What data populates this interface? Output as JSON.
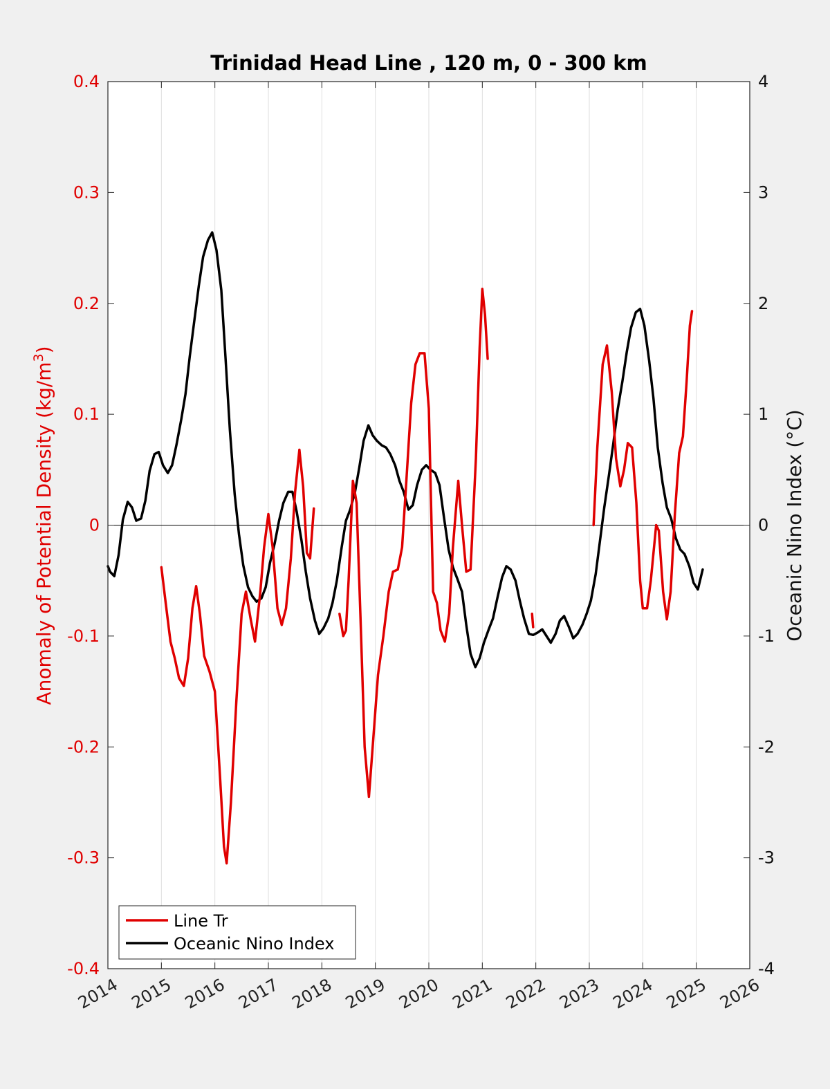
{
  "chart_data": {
    "type": "line",
    "title": "Trinidad Head Line , 120 m, 0 - 300 km",
    "ylabel_left": "Anomaly of Potential Density (kg/m",
    "ylabel_left_sup": "3",
    "ylabel_left_suffix": ")",
    "ylabel_right": "Oceanic Nino Index (°C)",
    "xlim": [
      2014,
      2026
    ],
    "ylim_left": [
      -0.4,
      0.4
    ],
    "ylim_right": [
      -4,
      4
    ],
    "xticks": [
      "2014",
      "2015",
      "2016",
      "2017",
      "2018",
      "2019",
      "2020",
      "2021",
      "2022",
      "2023",
      "2024",
      "2025",
      "2026"
    ],
    "yticks_left": [
      "-0.4",
      "-0.3",
      "-0.2",
      "-0.1",
      "0",
      "0.1",
      "0.2",
      "0.3",
      "0.4"
    ],
    "yticks_right": [
      "-4",
      "-3",
      "-2",
      "-1",
      "0",
      "1",
      "2",
      "3",
      "4"
    ],
    "grid": "vertical",
    "legend_position": "bottom-left",
    "series": [
      {
        "name": "Line Tr",
        "axis": "left",
        "color": "#e00000",
        "segments": [
          [
            [
              2015.0,
              -0.038
            ],
            [
              2015.08,
              -0.07
            ],
            [
              2015.17,
              -0.105
            ],
            [
              2015.25,
              -0.12
            ],
            [
              2015.33,
              -0.138
            ],
            [
              2015.42,
              -0.145
            ],
            [
              2015.5,
              -0.12
            ],
            [
              2015.58,
              -0.075
            ],
            [
              2015.65,
              -0.055
            ],
            [
              2015.72,
              -0.08
            ],
            [
              2015.8,
              -0.118
            ],
            [
              2015.9,
              -0.132
            ],
            [
              2016.0,
              -0.15
            ],
            [
              2016.1,
              -0.23
            ],
            [
              2016.17,
              -0.29
            ],
            [
              2016.22,
              -0.305
            ],
            [
              2016.3,
              -0.25
            ],
            [
              2016.4,
              -0.16
            ],
            [
              2016.5,
              -0.08
            ],
            [
              2016.58,
              -0.06
            ],
            [
              2016.67,
              -0.085
            ],
            [
              2016.75,
              -0.105
            ],
            [
              2016.85,
              -0.06
            ],
            [
              2016.92,
              -0.02
            ],
            [
              2017.0,
              0.01
            ],
            [
              2017.08,
              -0.02
            ],
            [
              2017.17,
              -0.075
            ],
            [
              2017.25,
              -0.09
            ],
            [
              2017.33,
              -0.075
            ],
            [
              2017.42,
              -0.03
            ],
            [
              2017.5,
              0.03
            ],
            [
              2017.58,
              0.068
            ],
            [
              2017.65,
              0.035
            ],
            [
              2017.72,
              -0.025
            ],
            [
              2017.78,
              -0.03
            ],
            [
              2017.85,
              0.015
            ]
          ],
          [
            [
              2018.33,
              -0.08
            ],
            [
              2018.4,
              -0.1
            ],
            [
              2018.45,
              -0.095
            ],
            [
              2018.5,
              -0.05
            ],
            [
              2018.58,
              0.04
            ],
            [
              2018.65,
              0.02
            ],
            [
              2018.72,
              -0.08
            ],
            [
              2018.8,
              -0.2
            ],
            [
              2018.88,
              -0.245
            ],
            [
              2018.95,
              -0.2
            ],
            [
              2019.05,
              -0.135
            ],
            [
              2019.15,
              -0.1
            ],
            [
              2019.25,
              -0.06
            ],
            [
              2019.33,
              -0.042
            ],
            [
              2019.42,
              -0.04
            ],
            [
              2019.5,
              -0.02
            ],
            [
              2019.58,
              0.04
            ],
            [
              2019.67,
              0.11
            ],
            [
              2019.75,
              0.145
            ],
            [
              2019.83,
              0.155
            ],
            [
              2019.92,
              0.155
            ],
            [
              2020.0,
              0.105
            ],
            [
              2020.08,
              -0.06
            ],
            [
              2020.15,
              -0.07
            ],
            [
              2020.22,
              -0.095
            ],
            [
              2020.3,
              -0.105
            ],
            [
              2020.38,
              -0.08
            ],
            [
              2020.45,
              -0.02
            ],
            [
              2020.55,
              0.04
            ],
            [
              2020.62,
              0.0
            ],
            [
              2020.7,
              -0.042
            ],
            [
              2020.78,
              -0.04
            ],
            [
              2020.88,
              0.06
            ],
            [
              2020.95,
              0.16
            ],
            [
              2021.0,
              0.213
            ],
            [
              2021.05,
              0.19
            ],
            [
              2021.1,
              0.15
            ]
          ],
          [
            [
              2021.93,
              -0.08
            ],
            [
              2021.95,
              -0.092
            ]
          ],
          [
            [
              2023.08,
              0.0
            ],
            [
              2023.15,
              0.07
            ],
            [
              2023.25,
              0.145
            ],
            [
              2023.33,
              0.162
            ],
            [
              2023.42,
              0.12
            ],
            [
              2023.5,
              0.06
            ],
            [
              2023.58,
              0.035
            ],
            [
              2023.65,
              0.05
            ],
            [
              2023.72,
              0.074
            ],
            [
              2023.8,
              0.07
            ],
            [
              2023.88,
              0.02
            ],
            [
              2023.95,
              -0.05
            ],
            [
              2024.0,
              -0.075
            ],
            [
              2024.08,
              -0.075
            ],
            [
              2024.15,
              -0.05
            ],
            [
              2024.25,
              0.0
            ],
            [
              2024.3,
              -0.005
            ],
            [
              2024.38,
              -0.06
            ],
            [
              2024.45,
              -0.085
            ],
            [
              2024.52,
              -0.06
            ],
            [
              2024.6,
              0.01
            ],
            [
              2024.68,
              0.065
            ],
            [
              2024.75,
              0.08
            ],
            [
              2024.82,
              0.13
            ],
            [
              2024.88,
              0.18
            ],
            [
              2024.92,
              0.193
            ]
          ]
        ]
      },
      {
        "name": "Oceanic Nino Index",
        "axis": "right",
        "color": "#000000",
        "segments": [
          [
            [
              2014.0,
              -0.37
            ],
            [
              2014.04,
              -0.42
            ],
            [
              2014.12,
              -0.46
            ],
            [
              2014.2,
              -0.27
            ],
            [
              2014.28,
              0.05
            ],
            [
              2014.37,
              0.21
            ],
            [
              2014.45,
              0.16
            ],
            [
              2014.53,
              0.04
            ],
            [
              2014.62,
              0.06
            ],
            [
              2014.7,
              0.22
            ],
            [
              2014.78,
              0.49
            ],
            [
              2014.87,
              0.64
            ],
            [
              2014.95,
              0.66
            ],
            [
              2015.03,
              0.54
            ],
            [
              2015.12,
              0.47
            ],
            [
              2015.2,
              0.54
            ],
            [
              2015.28,
              0.72
            ],
            [
              2015.37,
              0.95
            ],
            [
              2015.45,
              1.18
            ],
            [
              2015.53,
              1.52
            ],
            [
              2015.62,
              1.86
            ],
            [
              2015.7,
              2.16
            ],
            [
              2015.78,
              2.42
            ],
            [
              2015.87,
              2.57
            ],
            [
              2015.95,
              2.64
            ],
            [
              2016.03,
              2.48
            ],
            [
              2016.12,
              2.12
            ],
            [
              2016.2,
              1.5
            ],
            [
              2016.28,
              0.86
            ],
            [
              2016.37,
              0.28
            ],
            [
              2016.45,
              -0.08
            ],
            [
              2016.53,
              -0.36
            ],
            [
              2016.62,
              -0.56
            ],
            [
              2016.7,
              -0.64
            ],
            [
              2016.78,
              -0.69
            ],
            [
              2016.87,
              -0.66
            ],
            [
              2016.95,
              -0.56
            ],
            [
              2017.03,
              -0.34
            ],
            [
              2017.12,
              -0.16
            ],
            [
              2017.2,
              0.04
            ],
            [
              2017.28,
              0.2
            ],
            [
              2017.37,
              0.3
            ],
            [
              2017.45,
              0.3
            ],
            [
              2017.53,
              0.12
            ],
            [
              2017.62,
              -0.14
            ],
            [
              2017.7,
              -0.42
            ],
            [
              2017.78,
              -0.66
            ],
            [
              2017.87,
              -0.86
            ],
            [
              2017.95,
              -0.98
            ],
            [
              2018.03,
              -0.93
            ],
            [
              2018.12,
              -0.84
            ],
            [
              2018.2,
              -0.7
            ],
            [
              2018.28,
              -0.5
            ],
            [
              2018.37,
              -0.2
            ],
            [
              2018.45,
              0.04
            ],
            [
              2018.53,
              0.14
            ],
            [
              2018.62,
              0.3
            ],
            [
              2018.7,
              0.52
            ],
            [
              2018.78,
              0.76
            ],
            [
              2018.87,
              0.9
            ],
            [
              2018.95,
              0.81
            ],
            [
              2019.03,
              0.76
            ],
            [
              2019.12,
              0.72
            ],
            [
              2019.2,
              0.7
            ],
            [
              2019.28,
              0.64
            ],
            [
              2019.37,
              0.54
            ],
            [
              2019.45,
              0.4
            ],
            [
              2019.53,
              0.3
            ],
            [
              2019.62,
              0.14
            ],
            [
              2019.7,
              0.18
            ],
            [
              2019.78,
              0.36
            ],
            [
              2019.87,
              0.5
            ],
            [
              2019.95,
              0.54
            ],
            [
              2020.03,
              0.5
            ],
            [
              2020.12,
              0.47
            ],
            [
              2020.2,
              0.36
            ],
            [
              2020.28,
              0.08
            ],
            [
              2020.37,
              -0.22
            ],
            [
              2020.45,
              -0.38
            ],
            [
              2020.53,
              -0.48
            ],
            [
              2020.62,
              -0.6
            ],
            [
              2020.7,
              -0.9
            ],
            [
              2020.78,
              -1.16
            ],
            [
              2020.87,
              -1.28
            ],
            [
              2020.95,
              -1.2
            ],
            [
              2021.03,
              -1.06
            ],
            [
              2021.12,
              -0.94
            ],
            [
              2021.2,
              -0.84
            ],
            [
              2021.28,
              -0.66
            ],
            [
              2021.37,
              -0.47
            ],
            [
              2021.45,
              -0.37
            ],
            [
              2021.53,
              -0.4
            ],
            [
              2021.62,
              -0.5
            ],
            [
              2021.7,
              -0.68
            ],
            [
              2021.78,
              -0.84
            ],
            [
              2021.87,
              -0.98
            ],
            [
              2021.95,
              -0.99
            ],
            [
              2022.03,
              -0.97
            ],
            [
              2022.12,
              -0.94
            ],
            [
              2022.2,
              -1.0
            ],
            [
              2022.28,
              -1.06
            ],
            [
              2022.37,
              -0.98
            ],
            [
              2022.45,
              -0.86
            ],
            [
              2022.53,
              -0.82
            ],
            [
              2022.62,
              -0.92
            ],
            [
              2022.7,
              -1.02
            ],
            [
              2022.78,
              -0.98
            ],
            [
              2022.87,
              -0.9
            ],
            [
              2022.95,
              -0.8
            ],
            [
              2023.03,
              -0.68
            ],
            [
              2023.12,
              -0.44
            ],
            [
              2023.2,
              -0.14
            ],
            [
              2023.28,
              0.16
            ],
            [
              2023.37,
              0.46
            ],
            [
              2023.45,
              0.74
            ],
            [
              2023.53,
              1.04
            ],
            [
              2023.62,
              1.3
            ],
            [
              2023.7,
              1.56
            ],
            [
              2023.78,
              1.78
            ],
            [
              2023.87,
              1.92
            ],
            [
              2023.95,
              1.95
            ],
            [
              2024.03,
              1.8
            ],
            [
              2024.12,
              1.48
            ],
            [
              2024.2,
              1.14
            ],
            [
              2024.28,
              0.7
            ],
            [
              2024.37,
              0.38
            ],
            [
              2024.45,
              0.16
            ],
            [
              2024.53,
              0.06
            ],
            [
              2024.62,
              -0.12
            ],
            [
              2024.7,
              -0.22
            ],
            [
              2024.78,
              -0.26
            ],
            [
              2024.87,
              -0.37
            ],
            [
              2024.95,
              -0.52
            ],
            [
              2025.03,
              -0.58
            ],
            [
              2025.12,
              -0.4
            ]
          ]
        ]
      }
    ]
  }
}
